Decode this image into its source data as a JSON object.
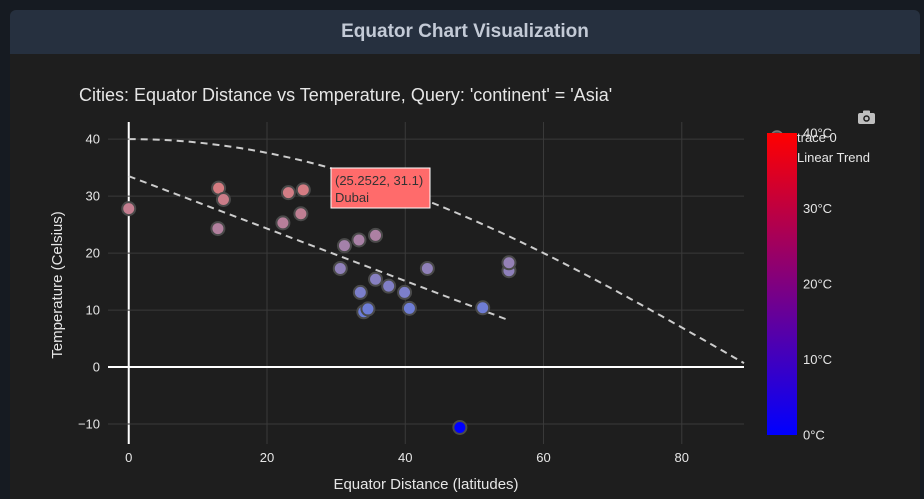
{
  "header": {
    "title": "Equator Chart Visualization"
  },
  "toolbar": {
    "camera_icon": "camera-icon"
  },
  "colors": {
    "page_bg": "#161b22",
    "panel_bg": "#1e1e1e",
    "header_bg": "#26303f",
    "grid": "#3a3a3a",
    "axis": "#ffffff",
    "text": "#e6e6e6",
    "trend": "#cccccc",
    "marker_outline": "#4a4a4a",
    "hover_bg": "#ff6b6b"
  },
  "chart_data": {
    "type": "scatter",
    "title": "Cities: Equator Distance vs Temperature, Query: 'continent' = 'Asia'",
    "xlabel": "Equator Distance (latitudes)",
    "ylabel": "Temperature (Celsius)",
    "xlim": [
      -3,
      89
    ],
    "ylim": [
      -13.5,
      43
    ],
    "x_ticks": [
      0,
      20,
      40,
      60,
      80
    ],
    "y_ticks": [
      -10,
      0,
      10,
      20,
      30,
      40
    ],
    "grid": true,
    "legend": {
      "placement": "top-right",
      "entries": [
        "trace 0",
        "Linear Trend"
      ]
    },
    "colorbar": {
      "min": 0,
      "max": 40,
      "ticks": [
        "0°C",
        "10°C",
        "20°C",
        "30°C",
        "40°C"
      ],
      "colorscale": [
        "#0000ff",
        "#ff0000"
      ]
    },
    "series": [
      {
        "name": "trace 0",
        "points": [
          {
            "x": 0,
            "y": 27.8
          },
          {
            "x": 13,
            "y": 31.4
          },
          {
            "x": 13.7,
            "y": 29.4
          },
          {
            "x": 12.9,
            "y": 24.3
          },
          {
            "x": 22.3,
            "y": 25.3
          },
          {
            "x": 23.1,
            "y": 30.6
          },
          {
            "x": 24.9,
            "y": 26.9
          },
          {
            "x": 25.25,
            "y": 31.1
          },
          {
            "x": 31.2,
            "y": 21.3
          },
          {
            "x": 33.3,
            "y": 22.3
          },
          {
            "x": 35.7,
            "y": 23.1
          },
          {
            "x": 30.6,
            "y": 17.3
          },
          {
            "x": 35.7,
            "y": 15.4
          },
          {
            "x": 37.6,
            "y": 14.2
          },
          {
            "x": 33.5,
            "y": 13.1
          },
          {
            "x": 39.9,
            "y": 13.1
          },
          {
            "x": 43.2,
            "y": 17.3
          },
          {
            "x": 34,
            "y": 9.7
          },
          {
            "x": 34.6,
            "y": 10.2
          },
          {
            "x": 40.6,
            "y": 10.3
          },
          {
            "x": 51.2,
            "y": 10.4
          },
          {
            "x": 55,
            "y": 16.9
          },
          {
            "x": 55,
            "y": 18.3
          },
          {
            "x": 47.9,
            "y": -10.6
          }
        ]
      },
      {
        "name": "Linear Trend",
        "line": [
          {
            "x": 0,
            "y": 33.5
          },
          {
            "x": 54.8,
            "y": 8.3
          }
        ]
      }
    ],
    "envelope": {
      "max_temp": 40,
      "max_latitude": 89
    },
    "hover": {
      "text": "(25.2522, 31.1)",
      "label": "Dubai"
    }
  }
}
